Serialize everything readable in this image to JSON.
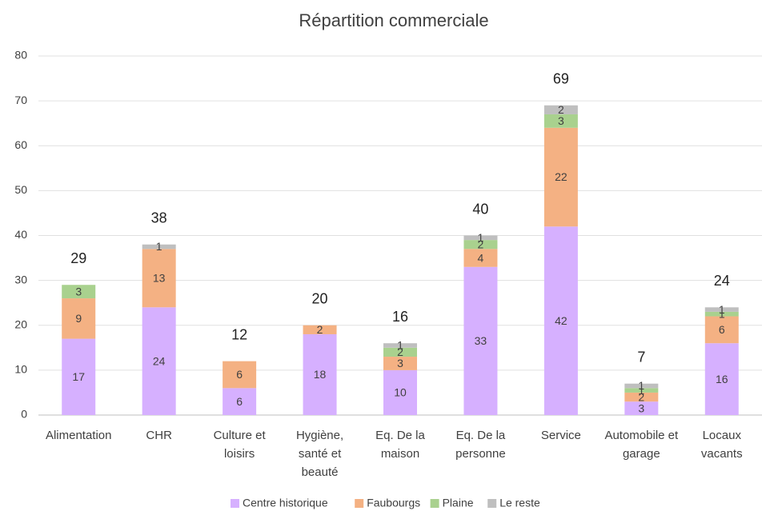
{
  "chart_data": {
    "type": "stacked_bar",
    "title": "Répartition commerciale",
    "categories": [
      "Alimentation",
      "CHR",
      "Culture et loisirs",
      "Hygiène, santé et beauté",
      "Eq. De la maison",
      "Eq. De la personne",
      "Service",
      "Automobile et garage",
      "Locaux vacants"
    ],
    "series": [
      {
        "name": "Centre historique",
        "color": "#d6b0ff",
        "values": [
          17,
          24,
          6,
          18,
          10,
          33,
          42,
          3,
          16
        ]
      },
      {
        "name": "Faubourgs",
        "color": "#f4b183",
        "values": [
          9,
          13,
          6,
          2,
          3,
          4,
          22,
          2,
          6
        ]
      },
      {
        "name": "Plaine",
        "color": "#a9d18e",
        "values": [
          3,
          null,
          null,
          null,
          2,
          2,
          3,
          1,
          1
        ]
      },
      {
        "name": "Le reste",
        "color": "#bfbfbf",
        "values": [
          null,
          1,
          null,
          null,
          1,
          1,
          2,
          1,
          1
        ]
      }
    ],
    "totals": [
      29,
      38,
      12,
      20,
      16,
      40,
      69,
      7,
      24
    ],
    "ylim": [
      0,
      80
    ],
    "yticks": [
      0,
      10,
      20,
      30,
      40,
      50,
      60,
      70,
      80
    ],
    "grid": true,
    "legend": "bottom"
  }
}
